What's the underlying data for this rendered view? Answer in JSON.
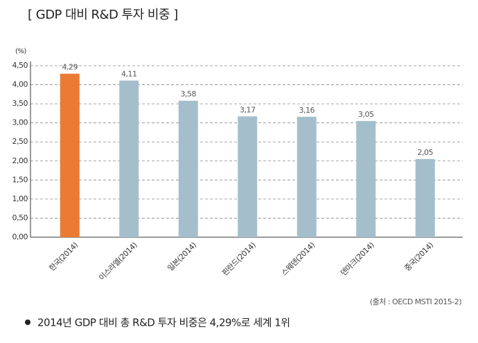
{
  "chart_data": {
    "type": "bar",
    "title": "[ GDP 대비 R&D 투자 비중 ]",
    "y_label": "(%)",
    "categories": [
      "한국(2014)",
      "이스라엘(2014)",
      "일본(2014)",
      "핀란드(2014)",
      "스웨덴(2014)",
      "덴마크(2014)",
      "중국(2014)"
    ],
    "values": [
      4.29,
      4.11,
      3.58,
      3.17,
      3.16,
      3.05,
      2.05
    ],
    "value_labels": [
      "4,29",
      "4,11",
      "3,58",
      "3,17",
      "3,16",
      "3,05",
      "2,05"
    ],
    "colors": [
      "#e97b34",
      "#a4bfcb",
      "#a4bfcb",
      "#a4bfcb",
      "#a4bfcb",
      "#a4bfcb",
      "#a4bfcb"
    ],
    "ylim": [
      0,
      4.5
    ],
    "yticks": [
      {
        "value": 0,
        "label": "0,00"
      },
      {
        "value": 0.5,
        "label": "0,50"
      },
      {
        "value": 1,
        "label": "1,00"
      },
      {
        "value": 1.5,
        "label": "1,50"
      },
      {
        "value": 2,
        "label": "2,00"
      },
      {
        "value": 2.5,
        "label": "2,50"
      },
      {
        "value": 3,
        "label": "3,00"
      },
      {
        "value": 3.5,
        "label": "3,50"
      },
      {
        "value": 4,
        "label": "4,00"
      },
      {
        "value": 4.5,
        "label": "4,50"
      }
    ],
    "grid": true,
    "source": "(출처 : OECD MSTI 2015-2)",
    "note": "2014년 GDP 대비 총 R&D 투자 비중은 4,29%로 세계 1위"
  }
}
